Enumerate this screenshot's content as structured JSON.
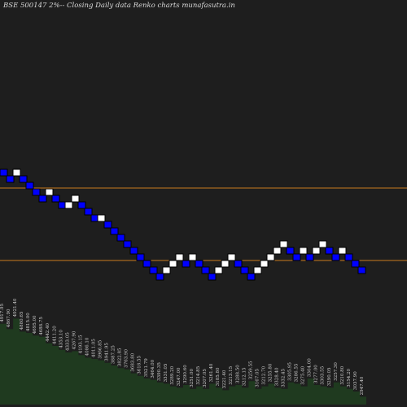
{
  "title": "BSE 500147 2%-- Closing Daily data  Renko  charts munafasutra.in",
  "colors": {
    "background": "#1e1e1e",
    "up_brick": "#ffffff",
    "down_brick": "#0000ff",
    "brick_outline": "#000000",
    "h_lines": "#c87a1e",
    "volume_fill": "#1f3a1f"
  },
  "chart_data": {
    "type": "renko",
    "title": "BSE 500147 2%-- Closing Daily data  Renko  charts munafasutra.in",
    "box_size_pct": 2,
    "bricks": [
      {
        "dir": "down",
        "level": 0
      },
      {
        "dir": "down",
        "level": -1
      },
      {
        "dir": "up",
        "level": 0
      },
      {
        "dir": "down",
        "level": -1
      },
      {
        "dir": "down",
        "level": -2
      },
      {
        "dir": "down",
        "level": -3
      },
      {
        "dir": "down",
        "level": -4
      },
      {
        "dir": "up",
        "level": -3
      },
      {
        "dir": "down",
        "level": -4
      },
      {
        "dir": "down",
        "level": -5
      },
      {
        "dir": "up",
        "level": -5
      },
      {
        "dir": "up",
        "level": -4
      },
      {
        "dir": "down",
        "level": -5
      },
      {
        "dir": "down",
        "level": -6
      },
      {
        "dir": "down",
        "level": -7
      },
      {
        "dir": "up",
        "level": -7
      },
      {
        "dir": "down",
        "level": -8
      },
      {
        "dir": "down",
        "level": -9
      },
      {
        "dir": "down",
        "level": -10
      },
      {
        "dir": "down",
        "level": -11
      },
      {
        "dir": "down",
        "level": -12
      },
      {
        "dir": "down",
        "level": -13
      },
      {
        "dir": "down",
        "level": -14
      },
      {
        "dir": "down",
        "level": -15
      },
      {
        "dir": "down",
        "level": -16
      },
      {
        "dir": "up",
        "level": -15
      },
      {
        "dir": "up",
        "level": -14
      },
      {
        "dir": "up",
        "level": -13
      },
      {
        "dir": "down",
        "level": -14
      },
      {
        "dir": "up",
        "level": -13
      },
      {
        "dir": "down",
        "level": -14
      },
      {
        "dir": "down",
        "level": -15
      },
      {
        "dir": "down",
        "level": -16
      },
      {
        "dir": "up",
        "level": -15
      },
      {
        "dir": "up",
        "level": -14
      },
      {
        "dir": "up",
        "level": -13
      },
      {
        "dir": "down",
        "level": -14
      },
      {
        "dir": "down",
        "level": -15
      },
      {
        "dir": "down",
        "level": -16
      },
      {
        "dir": "up",
        "level": -15
      },
      {
        "dir": "up",
        "level": -14
      },
      {
        "dir": "up",
        "level": -13
      },
      {
        "dir": "up",
        "level": -12
      },
      {
        "dir": "up",
        "level": -11
      },
      {
        "dir": "down",
        "level": -12
      },
      {
        "dir": "down",
        "level": -13
      },
      {
        "dir": "up",
        "level": -12
      },
      {
        "dir": "down",
        "level": -13
      },
      {
        "dir": "up",
        "level": -12
      },
      {
        "dir": "up",
        "level": -11
      },
      {
        "dir": "down",
        "level": -12
      },
      {
        "dir": "down",
        "level": -13
      },
      {
        "dir": "up",
        "level": -12
      },
      {
        "dir": "down",
        "level": -13
      },
      {
        "dir": "down",
        "level": -14
      },
      {
        "dir": "down",
        "level": -15
      }
    ],
    "horizontal_levels": [
      1000,
      1000
    ],
    "volume": [
      0.62,
      0.58,
      0.66,
      0.56,
      0.55,
      0.53,
      0.52,
      0.47,
      0.45,
      0.42,
      0.4,
      0.41,
      0.38,
      0.36,
      0.35,
      0.34,
      0.32,
      0.3,
      0.28,
      0.27,
      0.24,
      0.22,
      0.2,
      0.19,
      0.17,
      0.16,
      0.14,
      0.13,
      0.15,
      0.12,
      0.14,
      0.12,
      0.16,
      0.13,
      0.11,
      0.14,
      0.15,
      0.13,
      0.18,
      0.12,
      0.14,
      0.16,
      0.13,
      0.12,
      0.17,
      0.16,
      0.14,
      0.2,
      0.15,
      0.14,
      0.13,
      0.17,
      0.14,
      0.12,
      0.1,
      0.06
    ],
    "volume_labels": [
      "4917.95",
      "4867.90",
      "4921.40",
      "4880.65",
      "4815.00",
      "4695.00",
      "4688.75",
      "4442.40",
      "4411.20",
      "4353.10",
      "4333.05",
      "4267.90",
      "4193.15",
      "4086.10",
      "4011.05",
      "3966.85",
      "3941.95",
      "3887.25",
      "3822.85",
      "3763.90",
      "3683.80",
      "3618.55",
      "3521.79",
      "3464.00",
      "3390.35",
      "3331.05",
      "3289.20",
      "3247.00",
      "3290.60",
      "3251.00",
      "3214.85",
      "3207.05",
      "3261.40",
      "3185.80",
      "3221.40",
      "3213.15",
      "3288.50",
      "3212.15",
      "3259.55",
      "3167.05",
      "3212.70",
      "3255.80",
      "3328.40",
      "3332.45",
      "3305.95",
      "3286.55",
      "3275.40",
      "3304.00",
      "3277.00",
      "3303.55",
      "3290.05",
      "3257.30",
      "3210.80",
      "3154.20",
      "3037.90",
      "2947.40"
    ]
  }
}
